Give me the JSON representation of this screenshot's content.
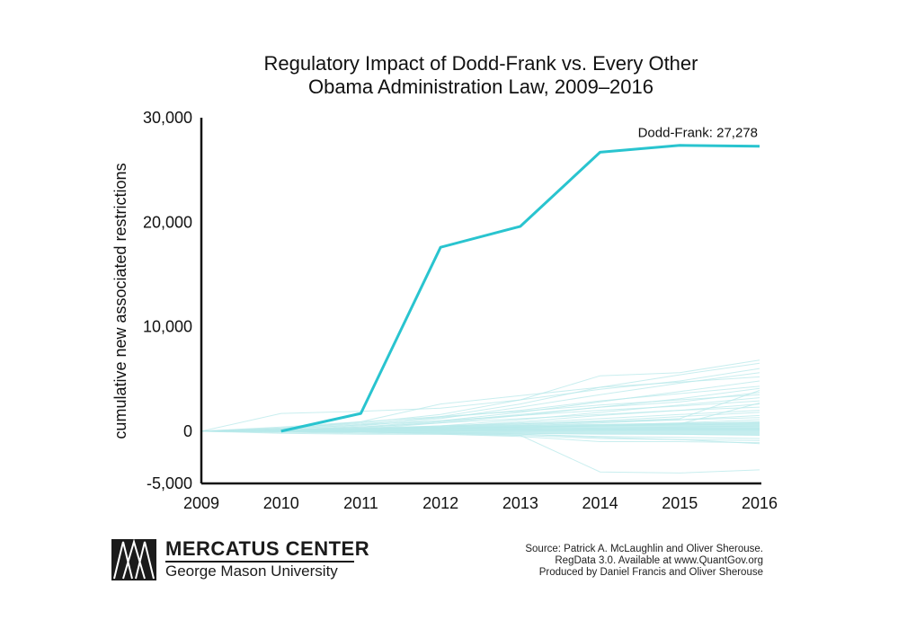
{
  "chart_data": {
    "type": "line",
    "title": "Regulatory Impact of Dodd-Frank vs. Every Other Obama Administration Law, 2009–2016",
    "title_lines": [
      "Regulatory Impact of Dodd-Frank vs. Every Other",
      "Obama Administration Law, 2009–2016"
    ],
    "xlabel": "",
    "ylabel": "cumulative new associated restrictions",
    "x": [
      2009,
      2010,
      2011,
      2012,
      2013,
      2014,
      2015,
      2016
    ],
    "x_tick_labels": [
      "2009",
      "2010",
      "2011",
      "2012",
      "2013",
      "2014",
      "2015",
      "2016"
    ],
    "ylim": [
      -5000,
      30000
    ],
    "y_ticks": [
      -5000,
      0,
      10000,
      20000,
      30000
    ],
    "y_tick_labels": [
      "-5,000",
      "0",
      "10,000",
      "20,000",
      "30,000"
    ],
    "grid": false,
    "highlight_color": "#29c4cf",
    "background_color": "#b7e8ea",
    "series": [
      {
        "name": "Dodd-Frank",
        "highlight": true,
        "x": [
          2010,
          2011,
          2012,
          2013,
          2014,
          2015,
          2016
        ],
        "values": [
          0,
          1700,
          17600,
          19600,
          26700,
          27350,
          27278
        ]
      }
    ],
    "background_series": [
      {
        "x": [
          2009,
          2010,
          2011,
          2012,
          2013,
          2014,
          2015,
          2016
        ],
        "values": [
          0,
          300,
          800,
          1600,
          3000,
          5300,
          5600,
          6800
        ]
      },
      {
        "x": [
          2009,
          2010,
          2011,
          2012,
          2013,
          2014,
          2015,
          2016
        ],
        "values": [
          0,
          200,
          600,
          1400,
          2600,
          4200,
          5400,
          6500
        ]
      },
      {
        "x": [
          2009,
          2010,
          2011,
          2012,
          2013,
          2014,
          2015,
          2016
        ],
        "values": [
          0,
          1700,
          1900,
          2200,
          3000,
          4000,
          4800,
          6000
        ]
      },
      {
        "x": [
          2009,
          2010,
          2011,
          2012,
          2013,
          2014,
          2015,
          2016
        ],
        "values": [
          0,
          100,
          500,
          1200,
          2300,
          3500,
          4600,
          5600
        ]
      },
      {
        "x": [
          2009,
          2010,
          2011,
          2012,
          2013,
          2014,
          2015,
          2016
        ],
        "values": [
          0,
          200,
          900,
          2600,
          3400,
          4200,
          4700,
          5200
        ]
      },
      {
        "x": [
          2009,
          2010,
          2011,
          2012,
          2013,
          2014,
          2015,
          2016
        ],
        "values": [
          0,
          100,
          400,
          1000,
          1800,
          2800,
          3800,
          4800
        ]
      },
      {
        "x": [
          2009,
          2010,
          2011,
          2012,
          2013,
          2014,
          2015,
          2016
        ],
        "values": [
          0,
          300,
          700,
          1300,
          2000,
          2900,
          3600,
          4300
        ]
      },
      {
        "x": [
          2009,
          2010,
          2011,
          2012,
          2013,
          2014,
          2015,
          2016
        ],
        "values": [
          0,
          0,
          200,
          800,
          1500,
          2300,
          3100,
          4100
        ]
      },
      {
        "x": [
          2009,
          2010,
          2011,
          2012,
          2013,
          2014,
          2015,
          2016
        ],
        "values": [
          0,
          100,
          300,
          900,
          1600,
          2300,
          2800,
          3700
        ]
      },
      {
        "x": [
          2009,
          2010,
          2011,
          2012,
          2013,
          2014,
          2015,
          2016
        ],
        "values": [
          0,
          400,
          900,
          1400,
          1900,
          2500,
          3000,
          3500
        ]
      },
      {
        "x": [
          2009,
          2010,
          2011,
          2012,
          2013,
          2014,
          2015,
          2016
        ],
        "values": [
          0,
          0,
          100,
          500,
          1100,
          1800,
          2500,
          3200
        ]
      },
      {
        "x": [
          2009,
          2010,
          2011,
          2012,
          2013,
          2014,
          2015,
          2016
        ],
        "values": [
          0,
          200,
          600,
          1000,
          1500,
          2000,
          2400,
          2900
        ]
      },
      {
        "x": [
          2009,
          2010,
          2011,
          2012,
          2013,
          2014,
          2015,
          2016
        ],
        "values": [
          0,
          0,
          100,
          400,
          900,
          1500,
          2000,
          2600
        ]
      },
      {
        "x": [
          2009,
          2010,
          2011,
          2012,
          2013,
          2014,
          2015,
          2016
        ],
        "values": [
          0,
          100,
          400,
          800,
          1200,
          1600,
          2000,
          2300
        ]
      },
      {
        "x": [
          2009,
          2010,
          2011,
          2012,
          2013,
          2014,
          2015,
          2016
        ],
        "values": [
          0,
          0,
          200,
          500,
          800,
          1200,
          1600,
          2000
        ]
      },
      {
        "x": [
          2009,
          2010,
          2011,
          2012,
          2013,
          2014,
          2015,
          2016
        ],
        "values": [
          0,
          100,
          200,
          400,
          700,
          1000,
          1400,
          1800
        ]
      },
      {
        "x": [
          2009,
          2010,
          2011,
          2012,
          2013,
          2014,
          2015,
          2016
        ],
        "values": [
          0,
          0,
          100,
          300,
          500,
          800,
          1100,
          1500
        ]
      },
      {
        "x": [
          2009,
          2010,
          2011,
          2012,
          2013,
          2014,
          2015,
          2016
        ],
        "values": [
          0,
          100,
          300,
          500,
          700,
          900,
          1100,
          1300
        ]
      },
      {
        "x": [
          2009,
          2010,
          2011,
          2012,
          2013,
          2014,
          2015,
          2016
        ],
        "values": [
          0,
          0,
          100,
          200,
          400,
          600,
          800,
          1100
        ]
      },
      {
        "x": [
          2009,
          2010,
          2011,
          2012,
          2013,
          2014,
          2015,
          2016
        ],
        "values": [
          0,
          0,
          0,
          100,
          300,
          500,
          700,
          900
        ]
      },
      {
        "x": [
          2009,
          2010,
          2011,
          2012,
          2013,
          2014,
          2015,
          2016
        ],
        "values": [
          0,
          100,
          200,
          300,
          400,
          500,
          600,
          700
        ]
      },
      {
        "x": [
          2009,
          2010,
          2011,
          2012,
          2013,
          2014,
          2015,
          2016
        ],
        "values": [
          0,
          0,
          0,
          100,
          200,
          300,
          400,
          500
        ]
      },
      {
        "x": [
          2009,
          2010,
          2011,
          2012,
          2013,
          2014,
          2015,
          2016
        ],
        "values": [
          0,
          0,
          100,
          100,
          200,
          200,
          300,
          300
        ]
      },
      {
        "x": [
          2009,
          2010,
          2011,
          2012,
          2013,
          2014,
          2015,
          2016
        ],
        "values": [
          0,
          0,
          0,
          0,
          100,
          100,
          200,
          200
        ]
      },
      {
        "x": [
          2009,
          2010,
          2011,
          2012,
          2013,
          2014,
          2015,
          2016
        ],
        "values": [
          0,
          0,
          0,
          0,
          0,
          100,
          100,
          100
        ]
      },
      {
        "x": [
          2009,
          2010,
          2011,
          2012,
          2013,
          2014,
          2015,
          2016
        ],
        "values": [
          0,
          0,
          -100,
          -100,
          -200,
          -300,
          -300,
          -400
        ]
      },
      {
        "x": [
          2009,
          2010,
          2011,
          2012,
          2013,
          2014,
          2015,
          2016
        ],
        "values": [
          0,
          0,
          -100,
          -200,
          -300,
          -500,
          -600,
          -700
        ]
      },
      {
        "x": [
          2009,
          2010,
          2011,
          2012,
          2013,
          2014,
          2015,
          2016
        ],
        "values": [
          0,
          -100,
          -100,
          -200,
          -400,
          -700,
          -800,
          -900
        ]
      },
      {
        "x": [
          2009,
          2010,
          2011,
          2012,
          2013,
          2014,
          2015,
          2016
        ],
        "values": [
          0,
          -100,
          -200,
          -300,
          -500,
          -1000,
          -1000,
          -1100
        ]
      },
      {
        "x": [
          2009,
          2010,
          2011,
          2012,
          2013,
          2014,
          2015,
          2016
        ],
        "values": [
          0,
          0,
          -100,
          -200,
          -300,
          -600,
          -800,
          -1200
        ]
      },
      {
        "x": [
          2009,
          2010,
          2011,
          2012,
          2013,
          2014,
          2015,
          2016
        ],
        "values": [
          0,
          -200,
          -300,
          -300,
          -400,
          -3900,
          -4000,
          -3700
        ]
      },
      {
        "x": [
          2009,
          2010,
          2011,
          2012,
          2013,
          2014,
          2015,
          2016
        ],
        "values": [
          0,
          100,
          200,
          400,
          600,
          900,
          1200,
          3900
        ]
      },
      {
        "x": [
          2009,
          2010,
          2011,
          2012,
          2013,
          2014,
          2015,
          2016
        ],
        "values": [
          0,
          0,
          100,
          200,
          400,
          500,
          700,
          2700
        ]
      }
    ],
    "annotations": [
      {
        "text": "Dodd-Frank: 27,278",
        "x": 2016,
        "y": 27278
      }
    ]
  },
  "branding": {
    "org_name": "MERCATUS CENTER",
    "org_sub": "George Mason University"
  },
  "source_lines": [
    "Source: Patrick A. McLaughlin and Oliver Sherouse.",
    "RegData 3.0. Available at www.QuantGov.org",
    "Produced by Daniel Francis and Oliver Sherouse"
  ]
}
